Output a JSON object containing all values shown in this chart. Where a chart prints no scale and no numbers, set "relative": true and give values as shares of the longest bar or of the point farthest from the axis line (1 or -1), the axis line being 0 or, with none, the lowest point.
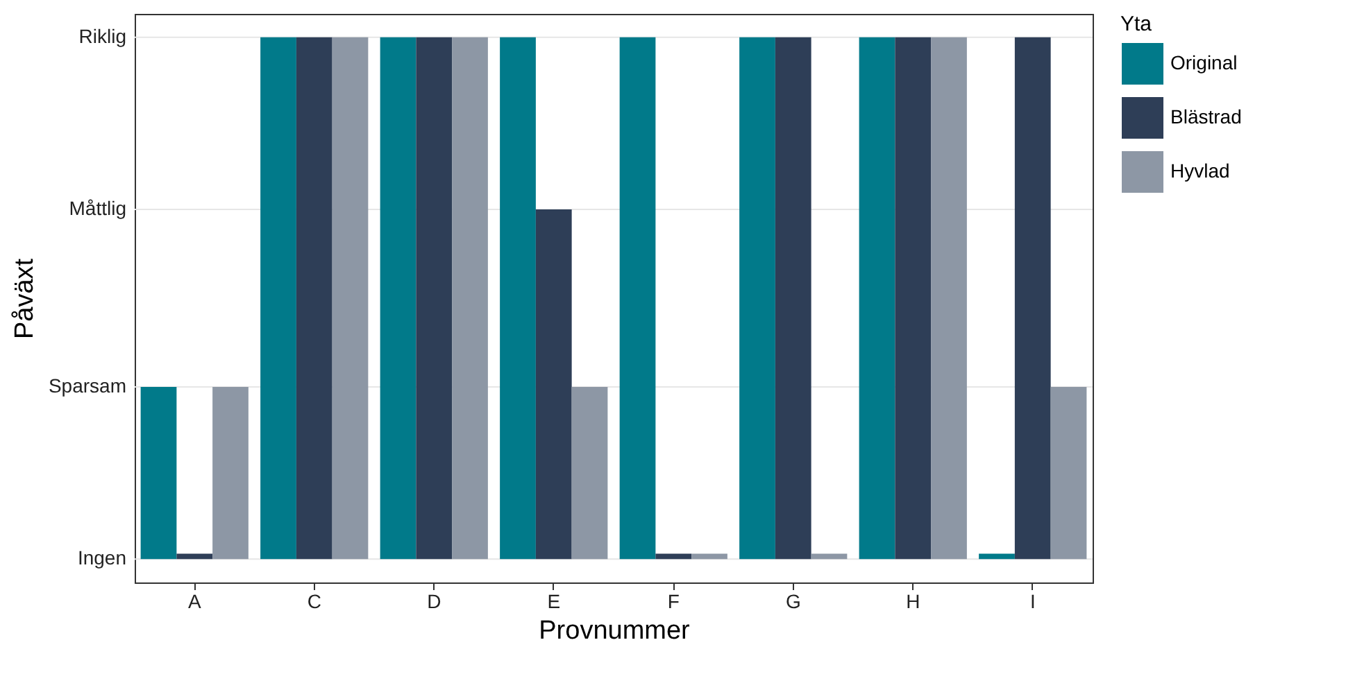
{
  "chart_data": {
    "type": "bar",
    "relative": true,
    "xlabel": "Provnummer",
    "ylabel": "Påväxt",
    "legend_title": "Yta",
    "categories": [
      "A",
      "C",
      "D",
      "E",
      "F",
      "G",
      "H",
      "I"
    ],
    "series": [
      {
        "name": "Original",
        "color": "#017a8a",
        "values": [
          0.33,
          1,
          1,
          1,
          1,
          1,
          1,
          0.01
        ]
      },
      {
        "name": "Blästrad",
        "color": "#2e3e57",
        "values": [
          0.01,
          1,
          1,
          0.67,
          0.01,
          1,
          1,
          1
        ]
      },
      {
        "name": "Hyvlad",
        "color": "#8d97a5",
        "values": [
          0.33,
          1,
          1,
          0.33,
          0.01,
          0.01,
          1,
          0.33
        ]
      }
    ],
    "ref_lines": [
      {
        "axis": "y",
        "value": 0,
        "label": "Ingen",
        "color": "#e6e6e6"
      },
      {
        "axis": "y",
        "value": 0.33,
        "label": "Sparsam",
        "color": "#e6e6e6"
      },
      {
        "axis": "y",
        "value": 0.67,
        "label": "Måttlig",
        "color": "#e6e6e6"
      },
      {
        "axis": "y",
        "value": 1,
        "label": "Riklig",
        "color": "#e6e6e6"
      }
    ],
    "legend": "right"
  }
}
